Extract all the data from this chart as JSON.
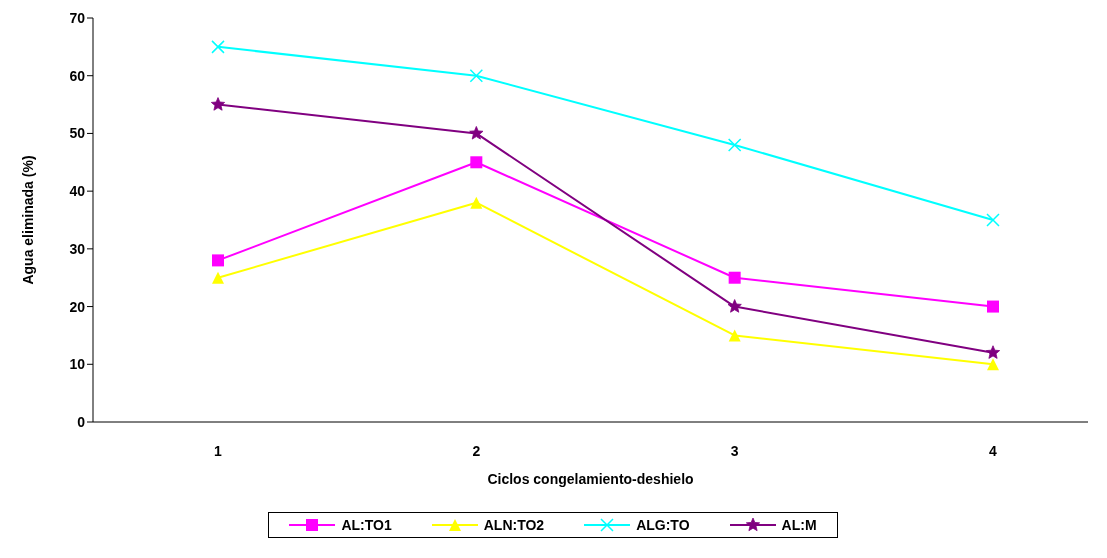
{
  "chart_data": {
    "type": "line",
    "xlabel": "Ciclos congelamiento-deshielo",
    "ylabel": "Agua eliminada (%)",
    "categories": [
      "1",
      "2",
      "3",
      "4"
    ],
    "ylim": [
      0,
      70
    ],
    "yticks": [
      0,
      10,
      20,
      30,
      40,
      50,
      60,
      70
    ],
    "grid": false,
    "legend": "bottom",
    "series": [
      {
        "name": "AL:TO1",
        "color": "#ff00ff",
        "marker": "square",
        "values": [
          28,
          45,
          25,
          20
        ]
      },
      {
        "name": "ALN:TO2",
        "color": "#ffff00",
        "marker": "triangle",
        "values": [
          25,
          38,
          15,
          10
        ]
      },
      {
        "name": "ALG:TO",
        "color": "#00ffff",
        "marker": "cross",
        "values": [
          65,
          60,
          48,
          35
        ]
      },
      {
        "name": "AL:M",
        "color": "#800080",
        "marker": "star",
        "values": [
          55,
          50,
          20,
          12
        ]
      }
    ]
  }
}
